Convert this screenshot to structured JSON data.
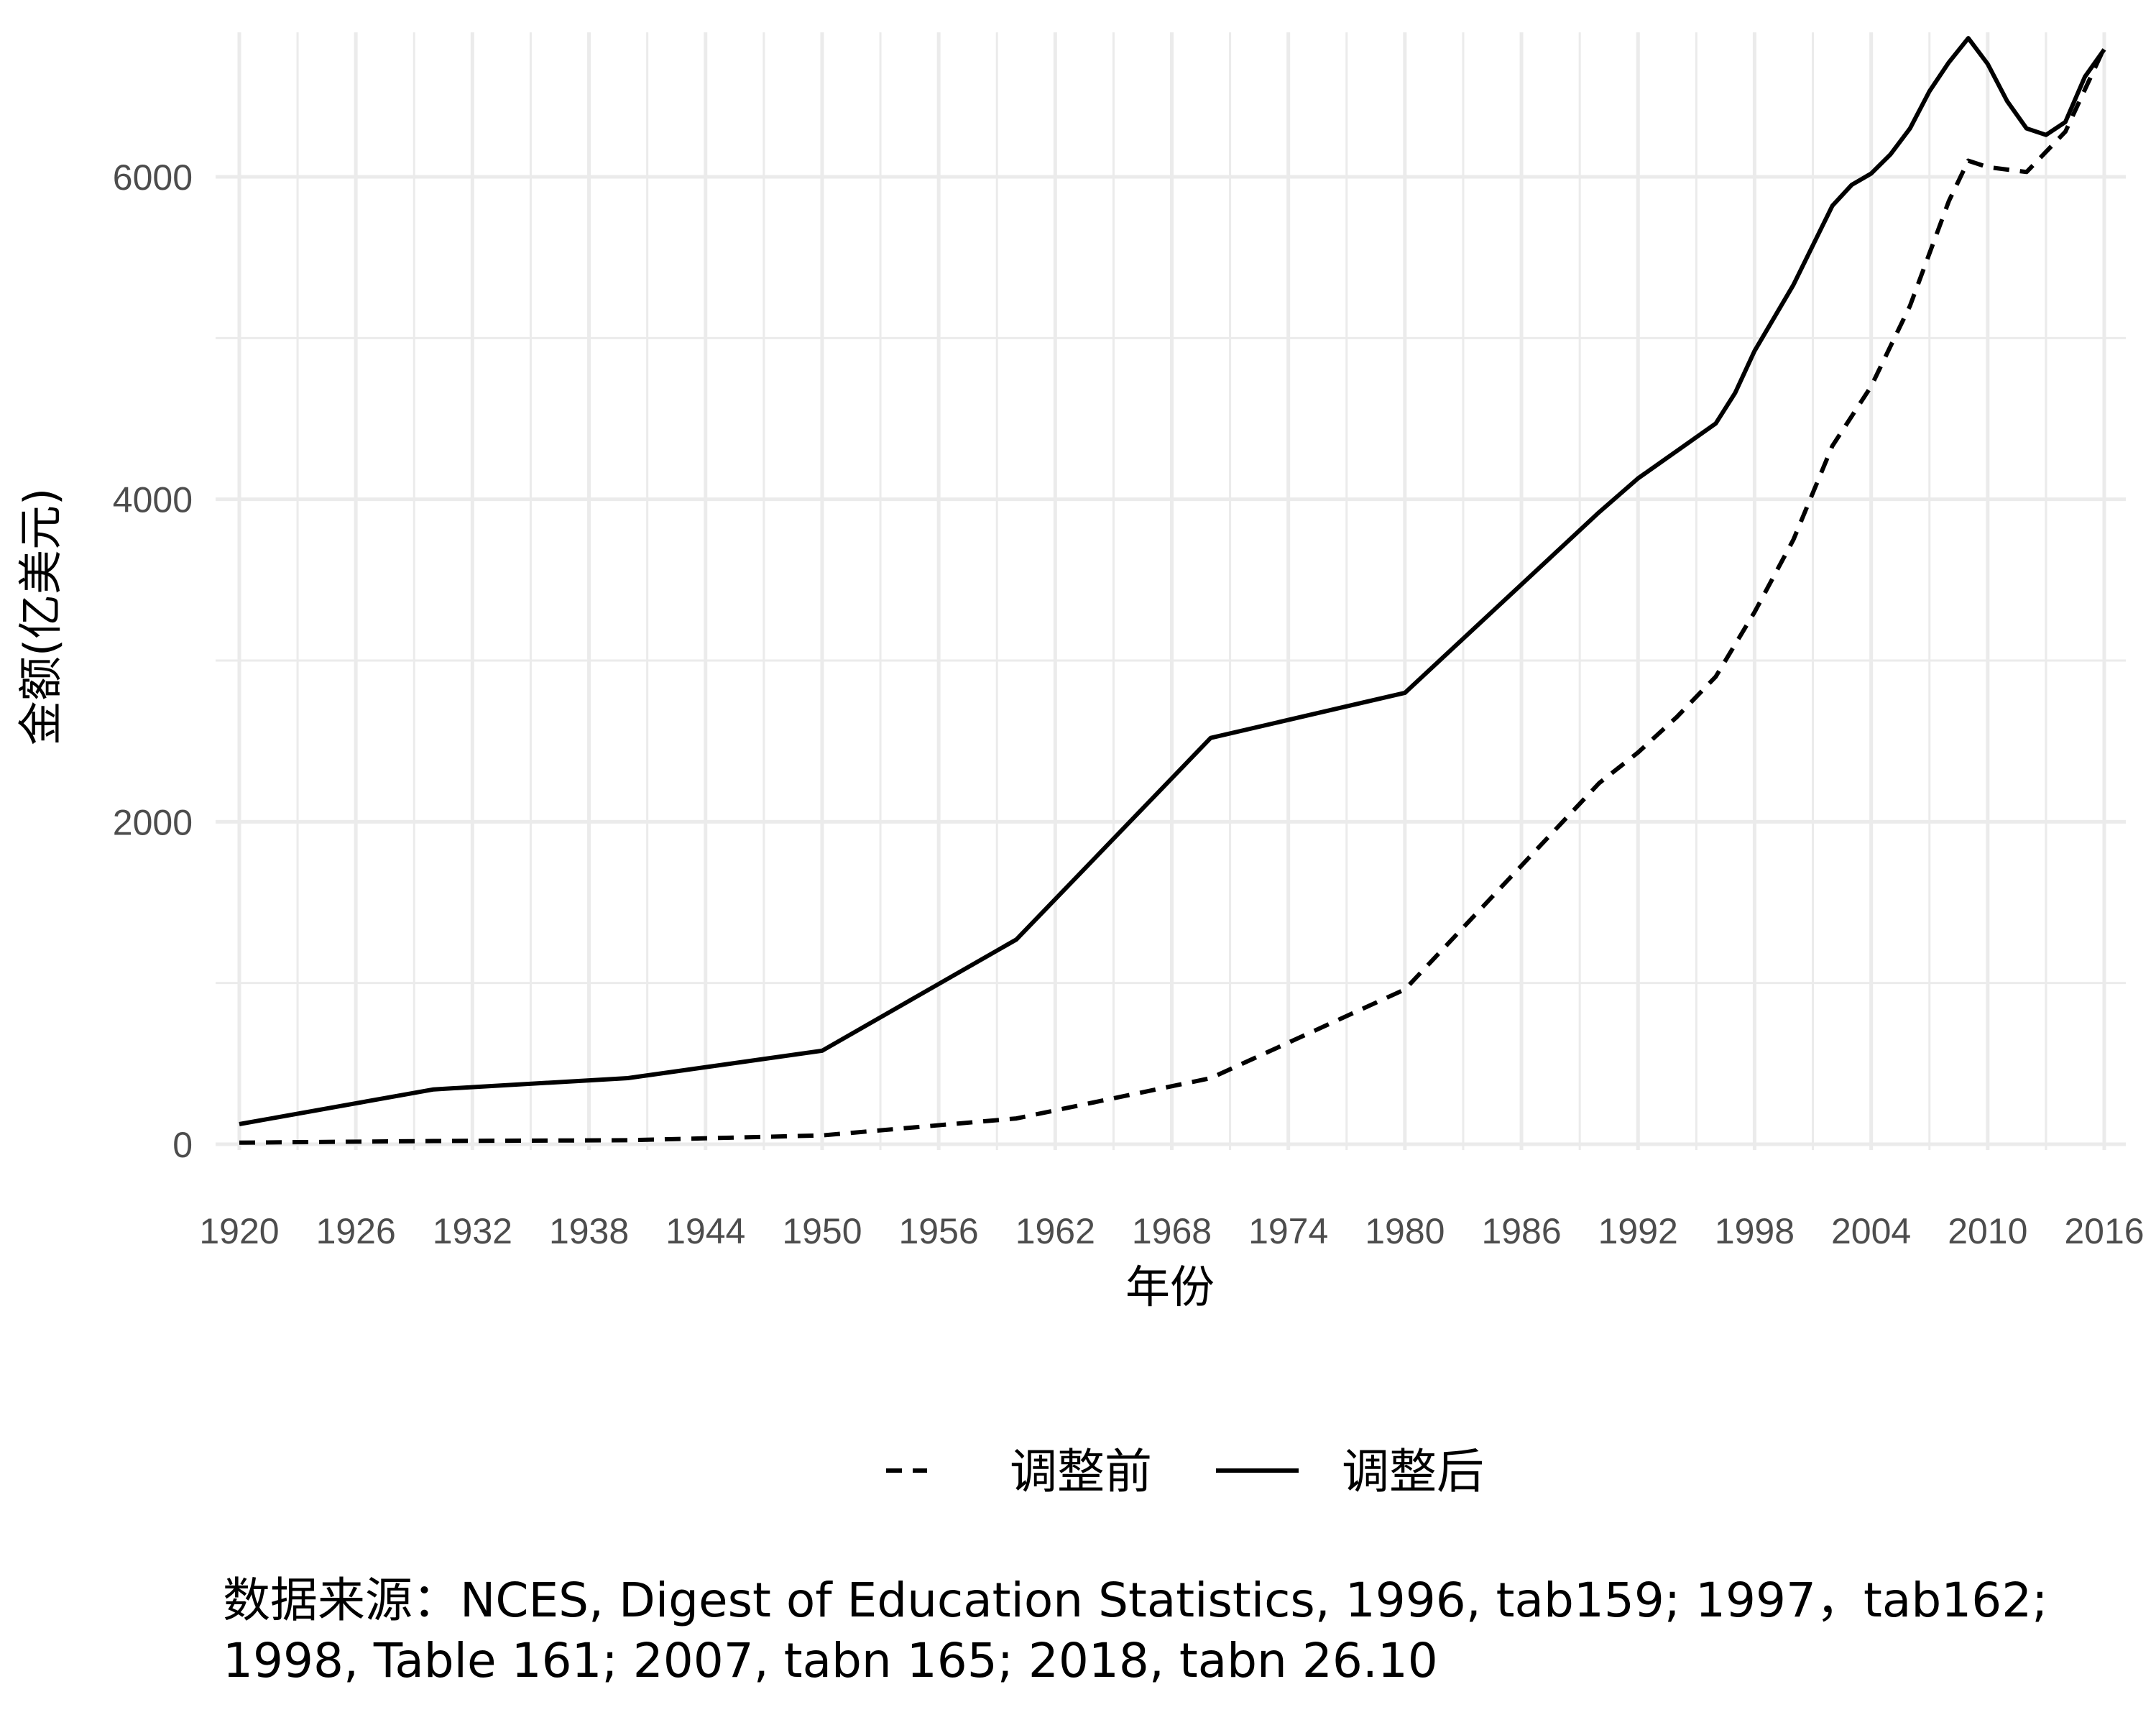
{
  "chart_data": {
    "type": "line",
    "xlabel": "年份",
    "ylabel": "金额(亿美元)",
    "xlim": [
      1920,
      2016
    ],
    "ylim": [
      0,
      6800
    ],
    "x_ticks": [
      1920,
      1926,
      1932,
      1938,
      1944,
      1950,
      1956,
      1962,
      1968,
      1974,
      1980,
      1986,
      1992,
      1998,
      2004,
      2010,
      2016
    ],
    "y_ticks": [
      0,
      2000,
      4000,
      6000
    ],
    "x_tick_labels": [
      "1920",
      "1926",
      "1932",
      "1938",
      "1944",
      "1950",
      "1956",
      "1962",
      "1968",
      "1974",
      "1980",
      "1986",
      "1992",
      "1998",
      "2004",
      "2010",
      "2016"
    ],
    "y_tick_labels": [
      "0",
      "2000",
      "4000",
      "6000"
    ],
    "grid": true,
    "legend_position": "bottom",
    "series": [
      {
        "name": "调整前",
        "line_style": "dashed",
        "color": "#000000",
        "points": [
          [
            1920,
            10
          ],
          [
            1930,
            20
          ],
          [
            1940,
            25
          ],
          [
            1950,
            55
          ],
          [
            1960,
            160
          ],
          [
            1970,
            410
          ],
          [
            1980,
            960
          ],
          [
            1990,
            2240
          ],
          [
            1992,
            2430
          ],
          [
            1994,
            2650
          ],
          [
            1996,
            2900
          ],
          [
            1998,
            3300
          ],
          [
            2000,
            3750
          ],
          [
            2002,
            4330
          ],
          [
            2004,
            4700
          ],
          [
            2006,
            5200
          ],
          [
            2008,
            5850
          ],
          [
            2009,
            6100
          ],
          [
            2010,
            6060
          ],
          [
            2012,
            6030
          ],
          [
            2014,
            6280
          ],
          [
            2016,
            6800
          ]
        ]
      },
      {
        "name": "调整后",
        "line_style": "solid",
        "color": "#000000",
        "points": [
          [
            1920,
            125
          ],
          [
            1930,
            340
          ],
          [
            1940,
            410
          ],
          [
            1950,
            580
          ],
          [
            1960,
            1270
          ],
          [
            1970,
            2520
          ],
          [
            1980,
            2800
          ],
          [
            1990,
            3920
          ],
          [
            1992,
            4130
          ],
          [
            1994,
            4300
          ],
          [
            1996,
            4470
          ],
          [
            1997,
            4660
          ],
          [
            1998,
            4920
          ],
          [
            2000,
            5330
          ],
          [
            2002,
            5820
          ],
          [
            2003,
            5950
          ],
          [
            2004,
            6020
          ],
          [
            2005,
            6140
          ],
          [
            2006,
            6300
          ],
          [
            2007,
            6530
          ],
          [
            2008,
            6710
          ],
          [
            2009,
            6860
          ],
          [
            2010,
            6700
          ],
          [
            2011,
            6470
          ],
          [
            2012,
            6300
          ],
          [
            2013,
            6260
          ],
          [
            2014,
            6340
          ],
          [
            2015,
            6620
          ],
          [
            2016,
            6790
          ]
        ]
      }
    ]
  },
  "caption": {
    "line1": "数据来源：NCES, Digest of Education Statistics, 1996, tab159; 1997，tab162;",
    "line2": "1998, Table 161; 2007, tabn 165; 2018, tabn 26.10"
  }
}
